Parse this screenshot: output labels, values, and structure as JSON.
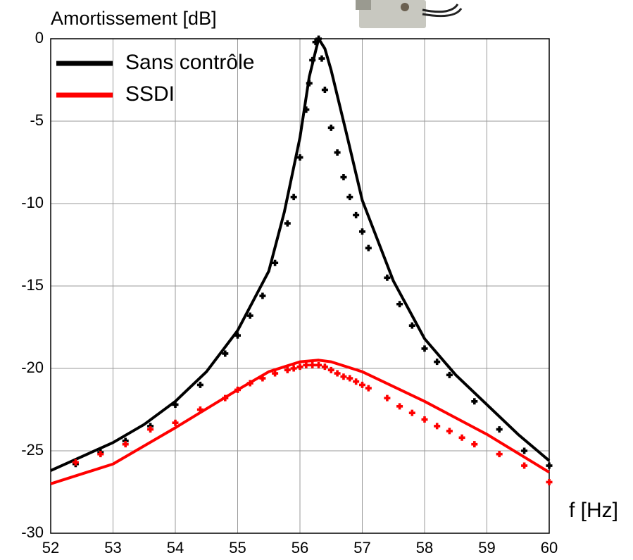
{
  "chart_data": {
    "type": "line",
    "ylabel": "Amortissement [dB]",
    "xlabel": "f [Hz]",
    "xlim": [
      52,
      60
    ],
    "xticks": [
      52,
      53,
      54,
      55,
      56,
      57,
      58,
      59,
      60
    ],
    "ylim": [
      -30,
      0
    ],
    "yticks": [
      0,
      -5,
      -10,
      -15,
      -20,
      -25,
      -30
    ],
    "grid": true,
    "legend": "upper left",
    "series": [
      {
        "name": "Sans contrôle",
        "color": "#000000",
        "style": "line",
        "x": [
          52,
          53,
          53.5,
          54,
          54.5,
          55,
          55.5,
          55.75,
          56,
          56.15,
          56.3,
          56.4,
          56.5,
          56.75,
          57,
          57.5,
          58,
          58.5,
          59,
          59.5,
          60
        ],
        "values": [
          -26.2,
          -24.5,
          -23.4,
          -22.0,
          -20.2,
          -17.7,
          -14.1,
          -10.5,
          -6.0,
          -2.3,
          0,
          -0.6,
          -1.9,
          -5.8,
          -9.8,
          -14.7,
          -18.2,
          -20.4,
          -22.2,
          -24.0,
          -25.6
        ]
      },
      {
        "name": "SSDI",
        "color": "#ff0000",
        "style": "line",
        "x": [
          52,
          53,
          54,
          55,
          55.5,
          56,
          56.3,
          56.5,
          57,
          58,
          59,
          60
        ],
        "values": [
          -27.0,
          -25.8,
          -23.6,
          -21.3,
          -20.2,
          -19.6,
          -19.5,
          -19.6,
          -20.2,
          -22.0,
          -24.0,
          -26.3
        ]
      },
      {
        "color": "#000000",
        "style": "markers",
        "x": [
          52.4,
          52.8,
          53.2,
          53.6,
          54,
          54.4,
          54.8,
          55,
          55.2,
          55.4,
          55.6,
          55.8,
          55.9,
          56,
          56.1,
          56.15,
          56.2,
          56.25,
          56.3,
          56.35,
          56.4,
          56.5,
          56.6,
          56.7,
          56.8,
          56.9,
          57,
          57.1,
          57.4,
          57.6,
          57.8,
          58,
          58.2,
          58.4,
          58.8,
          59.2,
          59.6,
          60
        ],
        "values": [
          -25.8,
          -25.1,
          -24.4,
          -23.5,
          -22.2,
          -21.0,
          -19.1,
          -18.0,
          -16.8,
          -15.6,
          -13.6,
          -11.2,
          -9.6,
          -7.2,
          -4.3,
          -2.7,
          -1.3,
          -0.2,
          0,
          -1.2,
          -3.1,
          -5.4,
          -6.9,
          -8.4,
          -9.6,
          -10.7,
          -11.7,
          -12.7,
          -14.5,
          -16.1,
          -17.4,
          -18.8,
          -19.6,
          -20.4,
          -22.0,
          -23.7,
          -25.0,
          -25.9
        ]
      },
      {
        "color": "#ff0000",
        "style": "markers",
        "x": [
          52.4,
          52.8,
          53.2,
          53.6,
          54,
          54.4,
          54.8,
          55,
          55.2,
          55.4,
          55.6,
          55.8,
          55.9,
          56,
          56.1,
          56.2,
          56.3,
          56.4,
          56.5,
          56.6,
          56.7,
          56.8,
          56.9,
          57,
          57.1,
          57.4,
          57.6,
          57.8,
          58,
          58.2,
          58.4,
          58.6,
          58.8,
          59.2,
          59.6,
          60
        ],
        "values": [
          -25.7,
          -25.2,
          -24.6,
          -23.7,
          -23.3,
          -22.5,
          -21.8,
          -21.3,
          -20.9,
          -20.6,
          -20.3,
          -20.1,
          -20.0,
          -19.9,
          -19.8,
          -19.8,
          -19.8,
          -19.9,
          -20.1,
          -20.3,
          -20.5,
          -20.6,
          -20.8,
          -21.0,
          -21.2,
          -21.8,
          -22.3,
          -22.7,
          -23.1,
          -23.5,
          -23.8,
          -24.2,
          -24.6,
          -25.2,
          -25.9,
          -26.9
        ]
      }
    ]
  }
}
